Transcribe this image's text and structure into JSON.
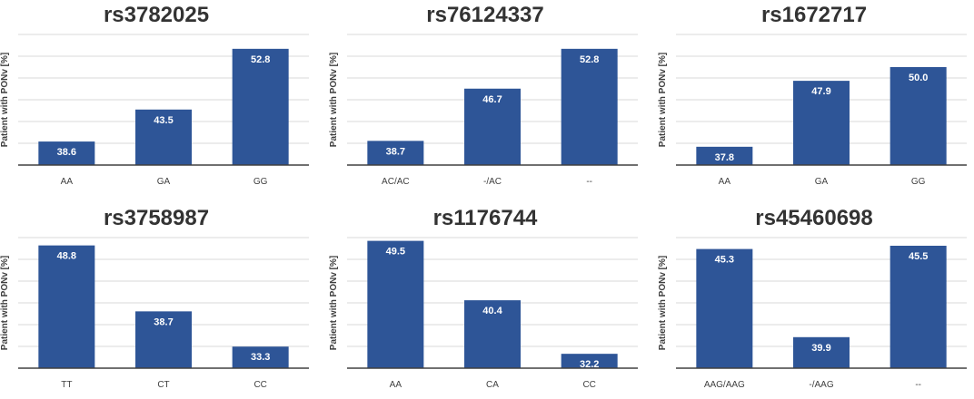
{
  "chart_data": [
    {
      "type": "bar",
      "title": "rs3782025",
      "ylabel": "Patient with PONv [%]",
      "xlabel": "",
      "ylim": [
        35,
        55
      ],
      "categories": [
        "AA",
        "GA",
        "GG"
      ],
      "values": [
        38.6,
        43.5,
        52.8
      ],
      "data_labels": [
        "38.6",
        "43.5",
        "52.8"
      ]
    },
    {
      "type": "bar",
      "title": "rs76124337",
      "ylabel": "Patient with PONv [%]",
      "xlabel": "",
      "ylim": [
        35,
        55
      ],
      "categories": [
        "AC/AC",
        "-/AC",
        "--"
      ],
      "values": [
        38.7,
        46.7,
        52.8
      ],
      "data_labels": [
        "38.7",
        "46.7",
        "52.8"
      ]
    },
    {
      "type": "bar",
      "title": "rs1672717",
      "ylabel": "Patient with PONv [%]",
      "xlabel": "",
      "ylim": [
        35,
        55
      ],
      "categories": [
        "AA",
        "GA",
        "GG"
      ],
      "values": [
        37.8,
        47.9,
        50.0
      ],
      "data_labels": [
        "37.8",
        "47.9",
        "50.0"
      ]
    },
    {
      "type": "bar",
      "title": "rs3758987",
      "ylabel": "Patient with PONv [%]",
      "xlabel": "",
      "ylim": [
        30,
        50
      ],
      "categories": [
        "TT",
        "CT",
        "CC"
      ],
      "values": [
        48.8,
        38.7,
        33.3
      ],
      "data_labels": [
        "48.8",
        "38.7",
        "33.3"
      ]
    },
    {
      "type": "bar",
      "title": "rs1176744",
      "ylabel": "Patient with PONv [%]",
      "xlabel": "",
      "ylim": [
        30,
        50
      ],
      "categories": [
        "AA",
        "CA",
        "CC"
      ],
      "values": [
        49.5,
        40.4,
        32.2
      ],
      "data_labels": [
        "49.5",
        "40.4",
        "32.2"
      ]
    },
    {
      "type": "bar",
      "title": "rs45460698",
      "ylabel": "Patient with PONv [%]",
      "xlabel": "",
      "ylim": [
        38,
        46
      ],
      "categories": [
        "AAG/AAG",
        "-/AAG",
        "--"
      ],
      "values": [
        45.3,
        39.9,
        45.5
      ],
      "data_labels": [
        "45.3",
        "39.9",
        "45.5"
      ]
    }
  ]
}
